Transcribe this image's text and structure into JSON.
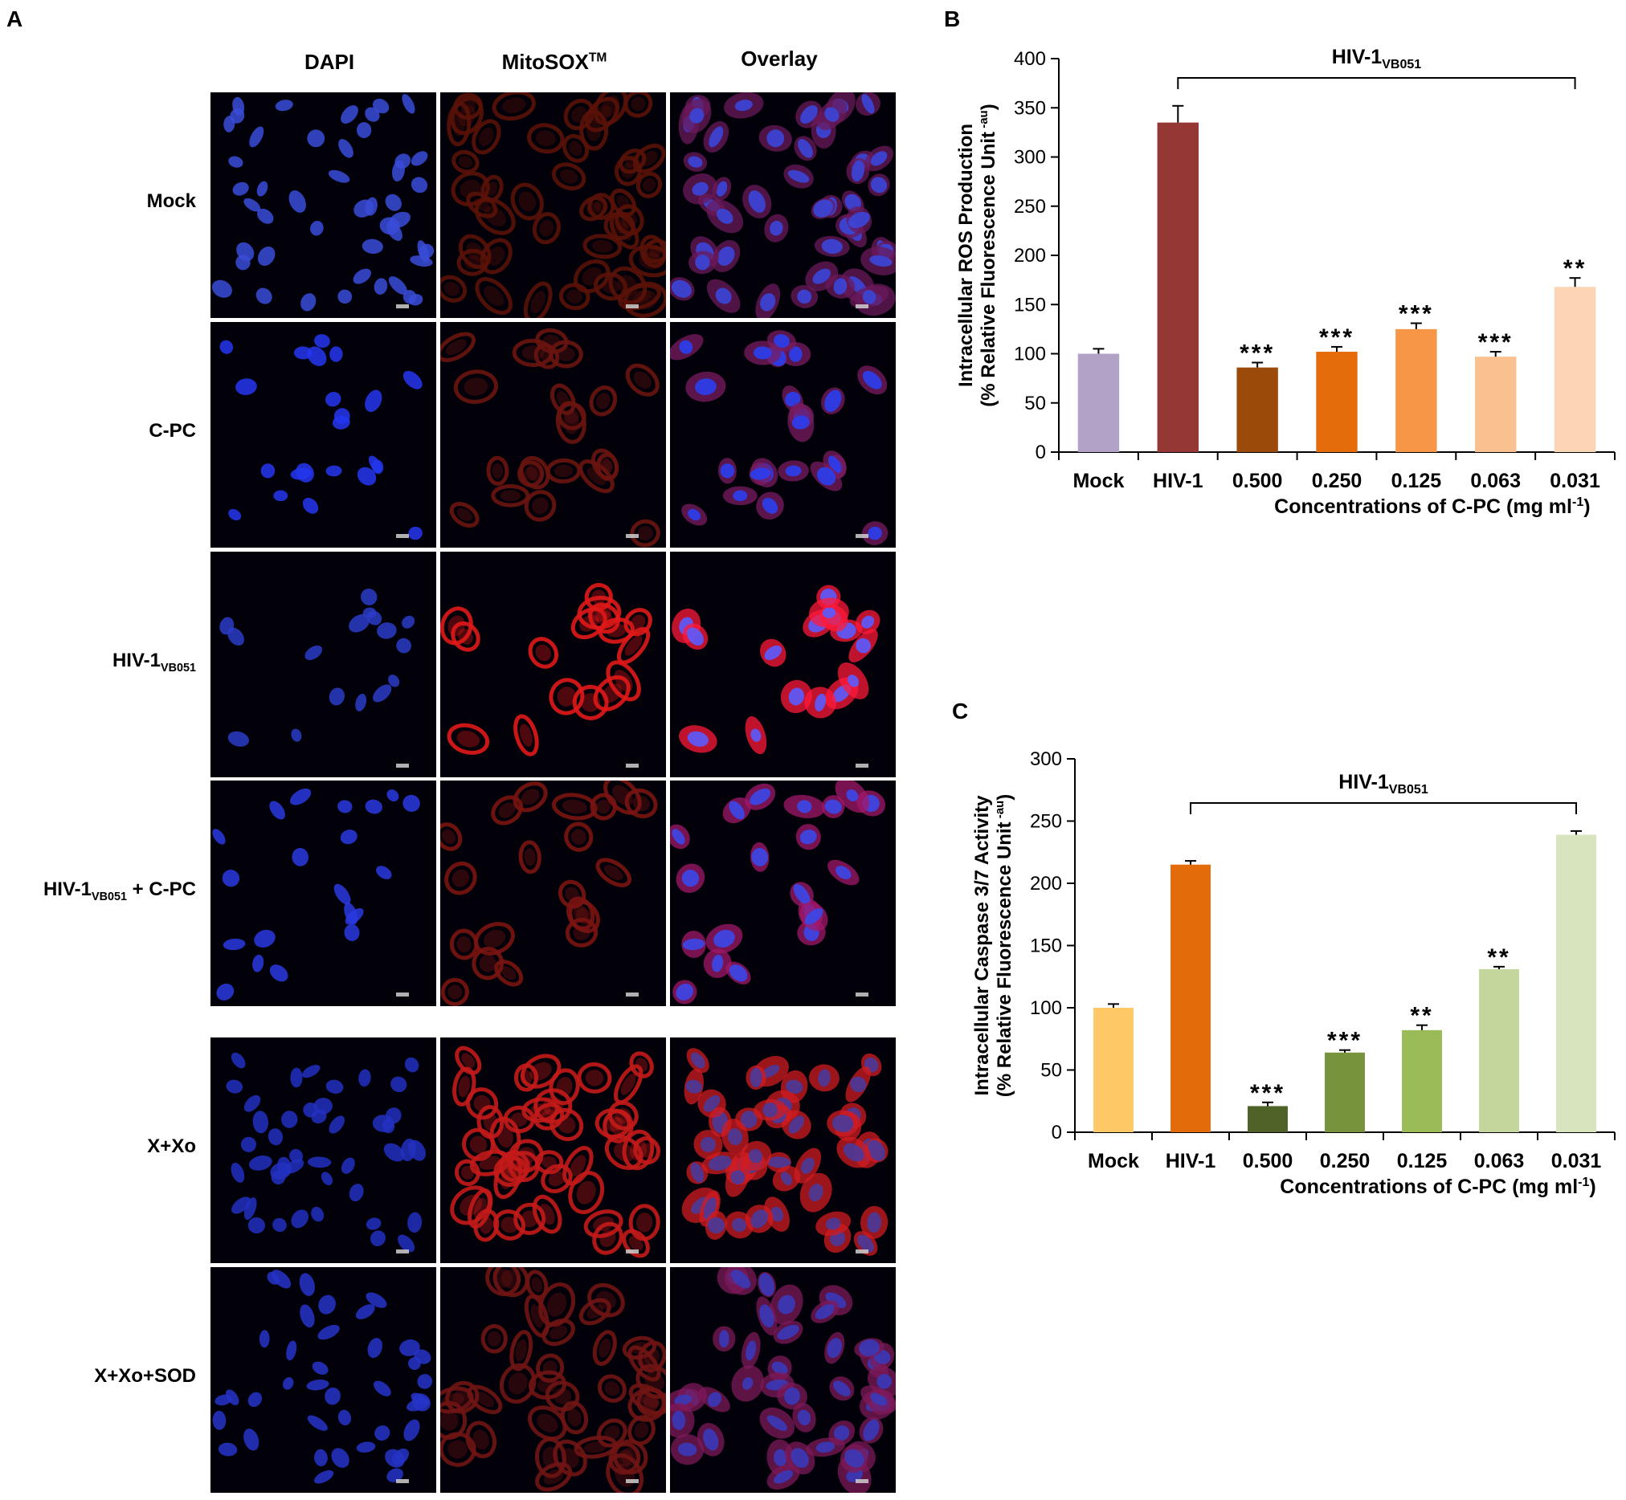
{
  "panel_a": {
    "letter": "A",
    "columns": [
      "DAPI",
      "MitoSOX",
      "Overlay"
    ],
    "mitosox_superscript": "TM",
    "rows": [
      {
        "label": "Mock",
        "sub": "",
        "suffix": "",
        "dapi": "#3a4cd8",
        "mito": "#5a1208",
        "over_nuc": "#3a46d8",
        "over_cyto": "#6a1a5a",
        "cells": 46,
        "seed": 3
      },
      {
        "label": "C-PC",
        "sub": "",
        "suffix": "",
        "dapi": "#2436f0",
        "mito": "#6a1410",
        "over_nuc": "#2a3ef0",
        "over_cyto": "#7a1c60",
        "cells": 22,
        "seed": 7
      },
      {
        "label": "HIV-1",
        "sub": "VB051",
        "suffix": "",
        "dapi": "#2b3cc8",
        "mito": "#e01818",
        "over_nuc": "#5a5cff",
        "over_cyto": "#ff1a3a",
        "cells": 16,
        "seed": 11
      },
      {
        "label": "HIV-1",
        "sub": "VB051",
        "suffix": " + C-PC",
        "dapi": "#2a3ae0",
        "mito": "#7a1412",
        "over_nuc": "#3a48e8",
        "over_cyto": "#a0186a",
        "cells": 20,
        "seed": 17
      },
      {
        "label": "X+Xo",
        "sub": "",
        "suffix": "",
        "dapi": "#2230c0",
        "mito": "#c41a1a",
        "over_nuc": "#4a3a9a",
        "over_cyto": "#d01c22",
        "cells": 44,
        "seed": 23
      },
      {
        "label": "X+Xo+SOD",
        "sub": "",
        "suffix": "",
        "dapi": "#2634c8",
        "mito": "#701414",
        "over_nuc": "#3a3ab8",
        "over_cyto": "#7e1a5a",
        "cells": 40,
        "seed": 29
      }
    ]
  },
  "chart_data": [
    {
      "panel": "B",
      "type": "bar",
      "categories": [
        "Mock",
        "HIV-1",
        "0.500",
        "0.250",
        "0.125",
        "0.063",
        "0.031"
      ],
      "values": [
        100,
        335,
        86,
        102,
        125,
        97,
        168
      ],
      "errors": [
        5,
        17,
        5,
        5,
        6,
        5,
        9
      ],
      "significance": [
        "",
        "",
        "***",
        "***",
        "***",
        "***",
        "**"
      ],
      "colors": [
        "#b3a2c7",
        "#953735",
        "#9c4a0a",
        "#e46c0a",
        "#f79646",
        "#fac090",
        "#fcd5b5"
      ],
      "ylabel_line1": "Intracellular ROS Production",
      "ylabel_line2": "(% Relative Fluorescence Unit",
      "ylabel_unit": "-au",
      "xlabel": "Concentrations of C-PC (mg ml",
      "xlabel_sup": "-1",
      "xlabel_end": ")",
      "bracket_label": "HIV-1",
      "bracket_sub": "VB051",
      "ylim": [
        0,
        400
      ],
      "yticks": [
        0,
        50,
        100,
        150,
        200,
        250,
        300,
        350,
        400
      ]
    },
    {
      "panel": "C",
      "type": "bar",
      "categories": [
        "Mock",
        "HIV-1",
        "0.500",
        "0.250",
        "0.125",
        "0.063",
        "0.031"
      ],
      "values": [
        100,
        215,
        21,
        64,
        82,
        131,
        239
      ],
      "errors": [
        3,
        3,
        3,
        2,
        4,
        2,
        3
      ],
      "significance": [
        "",
        "",
        "***",
        "***",
        "**",
        "**",
        ""
      ],
      "colors": [
        "#ffc866",
        "#e36c0a",
        "#4f6228",
        "#77933c",
        "#9bbb59",
        "#c3d69b",
        "#d7e4bd"
      ],
      "ylabel_line1": "Intracellular Caspase 3/7 Activity",
      "ylabel_line2": "(% Relative Fluorescence Unit",
      "ylabel_unit": "-au",
      "xlabel": "Concentrations of C-PC (mg ml",
      "xlabel_sup": "-1",
      "xlabel_end": ")",
      "bracket_label": "HIV-1",
      "bracket_sub": "VB051",
      "ylim": [
        0,
        300
      ],
      "yticks": [
        0,
        50,
        100,
        150,
        200,
        250,
        300
      ]
    }
  ]
}
